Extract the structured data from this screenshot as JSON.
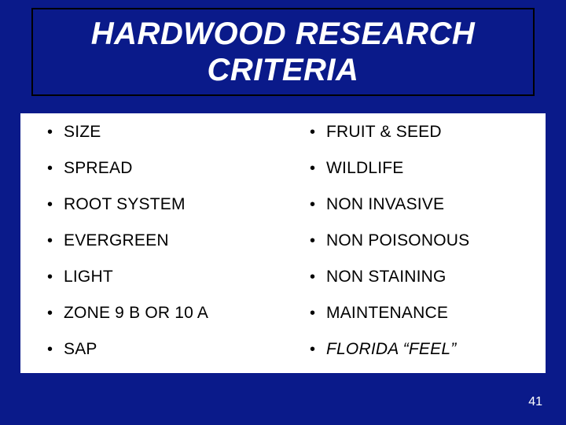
{
  "colors": {
    "slide_bg": "#0a1a8a",
    "title_text": "#ffffff",
    "title_border": "#000000",
    "content_bg": "#ffffff",
    "content_text": "#000000",
    "pagenum_text": "#ffffff"
  },
  "title": {
    "line1": "HARDWOOD RESEARCH",
    "line2": "CRITERIA",
    "fontsize": 40,
    "font_style": "bold italic"
  },
  "bullets": {
    "left": [
      {
        "label": "SIZE"
      },
      {
        "label": "SPREAD"
      },
      {
        "label": "ROOT SYSTEM"
      },
      {
        "label": "EVERGREEN"
      },
      {
        "label": "LIGHT"
      },
      {
        "label": "ZONE 9 B OR 10 A"
      },
      {
        "label": "SAP"
      }
    ],
    "right": [
      {
        "label": "FRUIT & SEED"
      },
      {
        "label": "WILDLIFE"
      },
      {
        "label": "NON INVASIVE"
      },
      {
        "label": "NON POISONOUS"
      },
      {
        "label": "NON STAINING"
      },
      {
        "label": "MAINTENANCE"
      },
      {
        "label": "FLORIDA “FEEL”",
        "italic": true
      }
    ],
    "fontsize": 21,
    "bullet_char": "•"
  },
  "page_number": "41"
}
